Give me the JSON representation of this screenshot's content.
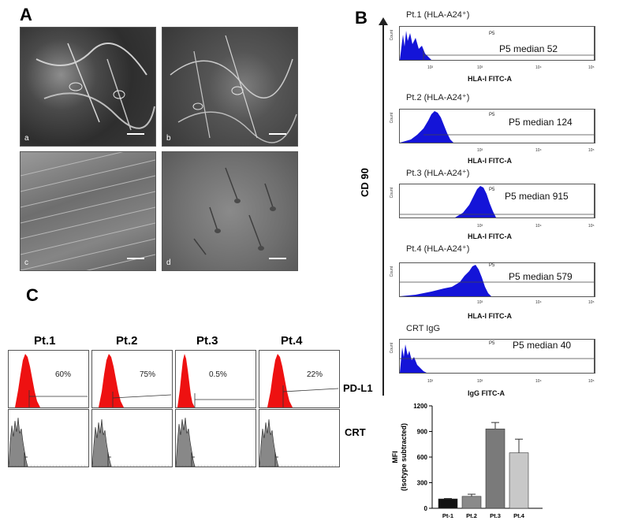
{
  "panelA": {
    "letter": "A",
    "images": [
      {
        "label": "a"
      },
      {
        "label": "b"
      },
      {
        "label": "c"
      },
      {
        "label": "d"
      }
    ]
  },
  "panelB": {
    "letter": "B",
    "y_axis_label": "CD 90",
    "gate_label": "P5",
    "count_label": "Count",
    "tick_labels": [
      "10²",
      "10³",
      "10⁴",
      "10⁵"
    ],
    "histograms": [
      {
        "title": "Pt.1 (HLA-A24⁺)",
        "median_text": "P5 median 52",
        "xlabel": "HLA-I FITC-A",
        "median": 52
      },
      {
        "title": "Pt.2 (HLA-A24⁺)",
        "median_text": "P5 median 124",
        "xlabel": "HLA-I FITC-A",
        "median": 124
      },
      {
        "title": "Pt.3 (HLA-A24⁺)",
        "median_text": "P5 median 915",
        "xlabel": "HLA-I FITC-A",
        "median": 915
      },
      {
        "title": "Pt.4 (HLA-A24⁺)",
        "median_text": "P5 median 579",
        "xlabel": "HLA-I FITC-A",
        "median": 579
      },
      {
        "title": "CRT IgG",
        "median_text": "P5 median  40",
        "xlabel": "IgG FITC-A",
        "median": 40
      }
    ]
  },
  "panelC": {
    "letter": "C",
    "row_labels": [
      "PD-L1",
      "CRT"
    ],
    "patients": [
      {
        "name": "Pt.1",
        "percent": "60%"
      },
      {
        "name": "Pt.2",
        "percent": "75%"
      },
      {
        "name": "Pt.3",
        "percent": "0.5%"
      },
      {
        "name": "Pt.4",
        "percent": "22%"
      }
    ]
  },
  "chart_data": {
    "type": "bar",
    "categories": [
      "Pt-1",
      "Pt.2",
      "Pt.3",
      "Pt.4"
    ],
    "values": [
      110,
      140,
      930,
      650
    ],
    "errors": [
      5,
      25,
      75,
      160
    ],
    "ylabel": "MFI\n(Isotype subtracted)",
    "ylabel_lines": [
      "MFI",
      "(Isotype subtracted)"
    ],
    "ylim": [
      0,
      1200
    ],
    "yticks": [
      0,
      300,
      600,
      900,
      1200
    ],
    "colors": [
      "#111111",
      "#8a8a8a",
      "#7a7a7a",
      "#c8c8c8"
    ]
  }
}
